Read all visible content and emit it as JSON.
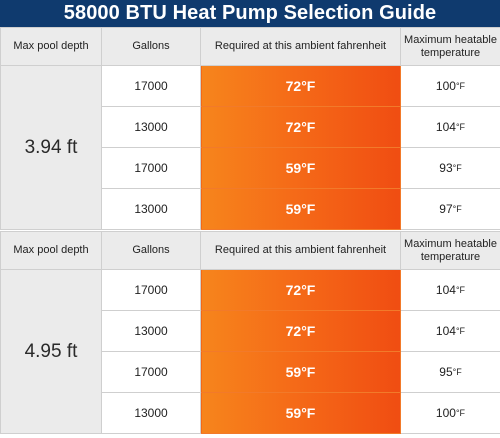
{
  "title": "58000 BTU Heat Pump Selection Guide",
  "headers": {
    "depth": "Max pool depth",
    "gallons": "Gallons",
    "ambient": "Required at this ambient fahrenheit",
    "max_temp": "Maximum heatable temperature"
  },
  "deg_unit": "°F",
  "sections": [
    {
      "depth": "3.94 ft",
      "rows": [
        {
          "gallons": "17000",
          "ambient": "72°F",
          "max_temp": "100"
        },
        {
          "gallons": "13000",
          "ambient": "72°F",
          "max_temp": "104"
        },
        {
          "gallons": "17000",
          "ambient": "59°F",
          "max_temp": "93"
        },
        {
          "gallons": "13000",
          "ambient": "59°F",
          "max_temp": "97"
        }
      ]
    },
    {
      "depth": "4.95 ft",
      "rows": [
        {
          "gallons": "17000",
          "ambient": "72°F",
          "max_temp": "104"
        },
        {
          "gallons": "13000",
          "ambient": "72°F",
          "max_temp": "104"
        },
        {
          "gallons": "17000",
          "ambient": "59°F",
          "max_temp": "95"
        },
        {
          "gallons": "13000",
          "ambient": "59°F",
          "max_temp": "100"
        }
      ]
    }
  ],
  "colors": {
    "title_bg": "#0f3a6e",
    "header_bg": "#ebebeb",
    "ambient_orange": "#f56b18"
  }
}
